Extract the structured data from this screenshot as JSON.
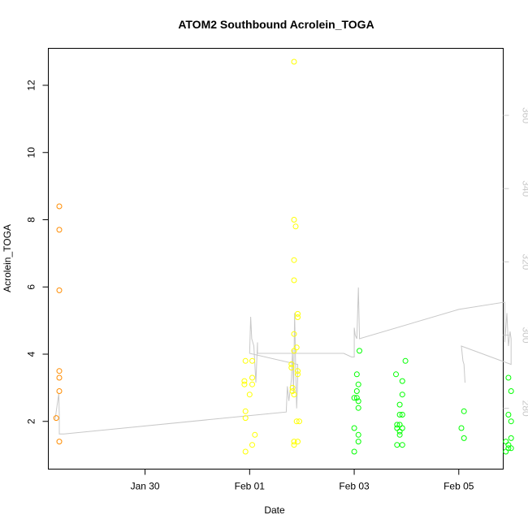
{
  "chart_data": {
    "type": "scatter",
    "title": "ATOM2 Southbound Acrolein_TOGA",
    "xlabel": "Date",
    "ylabel": "Acrolein_TOGA",
    "x_ticks": [
      "Jan 30",
      "Feb 01",
      "Feb 03",
      "Feb 05"
    ],
    "x_tick_values": [
      29.0,
      31.0,
      33.0,
      35.0
    ],
    "x_note": "x values are days since Jan 1 (Jan 30 = 29.0, Feb 01 = 31.0)",
    "xlim": [
      27.15,
      35.85
    ],
    "ylim": [
      0.58,
      13.1
    ],
    "y_ticks": [
      "2",
      "4",
      "6",
      "8",
      "10",
      "12"
    ],
    "y_tick_values": [
      2,
      4,
      6,
      8,
      10,
      12
    ],
    "y2_ticks": [
      "280",
      "300",
      "320",
      "340",
      "360"
    ],
    "y2_tick_values": [
      280,
      300,
      320,
      340,
      360
    ],
    "y2lim": [
      263.4,
      378.3
    ],
    "grid": false,
    "series": [
      {
        "color": "#FF8C00",
        "points": [
          [
            27.3,
            2.1
          ],
          [
            27.36,
            8.4
          ],
          [
            27.36,
            7.7
          ],
          [
            27.36,
            5.9
          ],
          [
            27.36,
            3.5
          ],
          [
            27.36,
            3.3
          ],
          [
            27.36,
            2.9
          ],
          [
            27.36,
            1.4
          ]
        ]
      },
      {
        "color": "#FFFF00",
        "points": [
          [
            30.9,
            3.2
          ],
          [
            30.9,
            3.1
          ],
          [
            30.92,
            3.8
          ],
          [
            30.92,
            2.3
          ],
          [
            30.92,
            2.1
          ],
          [
            30.92,
            1.1
          ],
          [
            31.0,
            2.8
          ],
          [
            31.05,
            3.8
          ],
          [
            31.05,
            3.3
          ],
          [
            31.05,
            3.1
          ],
          [
            31.05,
            1.3
          ],
          [
            31.1,
            1.6
          ],
          [
            31.8,
            3.7
          ],
          [
            31.8,
            3.6
          ],
          [
            31.82,
            3.0
          ],
          [
            31.82,
            2.9
          ],
          [
            31.85,
            12.7
          ],
          [
            31.85,
            8.0
          ],
          [
            31.85,
            6.8
          ],
          [
            31.85,
            6.2
          ],
          [
            31.85,
            4.6
          ],
          [
            31.85,
            4.1
          ],
          [
            31.85,
            2.8
          ],
          [
            31.85,
            1.4
          ],
          [
            31.85,
            1.3
          ],
          [
            31.88,
            7.8
          ],
          [
            31.9,
            4.2
          ],
          [
            31.9,
            2.0
          ],
          [
            31.92,
            5.2
          ],
          [
            31.92,
            5.1
          ],
          [
            31.92,
            3.5
          ],
          [
            31.92,
            3.4
          ],
          [
            31.92,
            1.4
          ],
          [
            31.95,
            2.0
          ]
        ]
      },
      {
        "color": "#00FF00",
        "points": [
          [
            33.0,
            2.7
          ],
          [
            33.0,
            1.8
          ],
          [
            33.0,
            1.1
          ],
          [
            33.05,
            3.4
          ],
          [
            33.05,
            2.9
          ],
          [
            33.05,
            2.7
          ],
          [
            33.08,
            3.1
          ],
          [
            33.08,
            2.6
          ],
          [
            33.08,
            2.4
          ],
          [
            33.08,
            1.6
          ],
          [
            33.08,
            1.4
          ],
          [
            33.1,
            4.1
          ],
          [
            33.8,
            3.4
          ],
          [
            33.82,
            1.9
          ],
          [
            33.82,
            1.8
          ],
          [
            33.82,
            1.3
          ],
          [
            33.87,
            2.5
          ],
          [
            33.87,
            2.2
          ],
          [
            33.87,
            1.9
          ],
          [
            33.87,
            1.7
          ],
          [
            33.87,
            1.6
          ],
          [
            33.92,
            3.2
          ],
          [
            33.92,
            2.8
          ],
          [
            33.92,
            2.2
          ],
          [
            33.92,
            1.8
          ],
          [
            33.92,
            1.3
          ],
          [
            33.98,
            3.8
          ],
          [
            35.05,
            1.8
          ],
          [
            35.1,
            2.3
          ],
          [
            35.1,
            1.5
          ],
          [
            35.9,
            1.4
          ],
          [
            35.9,
            1.1
          ],
          [
            35.95,
            3.3
          ],
          [
            35.95,
            2.2
          ],
          [
            35.95,
            1.3
          ],
          [
            35.95,
            1.2
          ],
          [
            36.0,
            2.9
          ],
          [
            36.0,
            2.0
          ],
          [
            36.0,
            1.5
          ],
          [
            36.0,
            1.2
          ]
        ]
      }
    ],
    "secondary_line": {
      "axis": "right",
      "color": "#C8C8C8",
      "points": [
        [
          27.28,
          277
        ],
        [
          27.32,
          281
        ],
        [
          27.35,
          284
        ],
        [
          27.36,
          278
        ],
        [
          27.36,
          273
        ],
        [
          27.45,
          273
        ],
        [
          31.7,
          279
        ],
        [
          31.72,
          286
        ],
        [
          31.75,
          282
        ],
        [
          31.8,
          288
        ],
        [
          31.82,
          296
        ],
        [
          31.84,
          284
        ],
        [
          31.86,
          306
        ],
        [
          31.88,
          291
        ],
        [
          31.9,
          280
        ],
        [
          31.92,
          288
        ],
        [
          31.92,
          292
        ],
        [
          31.0,
          295
        ],
        [
          31.02,
          305
        ],
        [
          31.04,
          299
        ],
        [
          31.08,
          297
        ],
        [
          31.12,
          287
        ],
        [
          31.15,
          298
        ],
        [
          31.15,
          295
        ],
        [
          32.0,
          295
        ],
        [
          32.8,
          295
        ],
        [
          32.95,
          294
        ],
        [
          33.0,
          294
        ],
        [
          33.0,
          302
        ],
        [
          33.02,
          300
        ],
        [
          33.05,
          299
        ],
        [
          33.08,
          313
        ],
        [
          33.1,
          300
        ],
        [
          33.1,
          299
        ],
        [
          35.0,
          307
        ],
        [
          35.88,
          309
        ],
        [
          35.88,
          298
        ],
        [
          35.92,
          306
        ],
        [
          35.95,
          297
        ],
        [
          35.98,
          301
        ],
        [
          36.0,
          299
        ],
        [
          36.0,
          292
        ],
        [
          35.05,
          297
        ],
        [
          35.08,
          293
        ],
        [
          35.1,
          292
        ],
        [
          35.12,
          287
        ]
      ]
    }
  }
}
